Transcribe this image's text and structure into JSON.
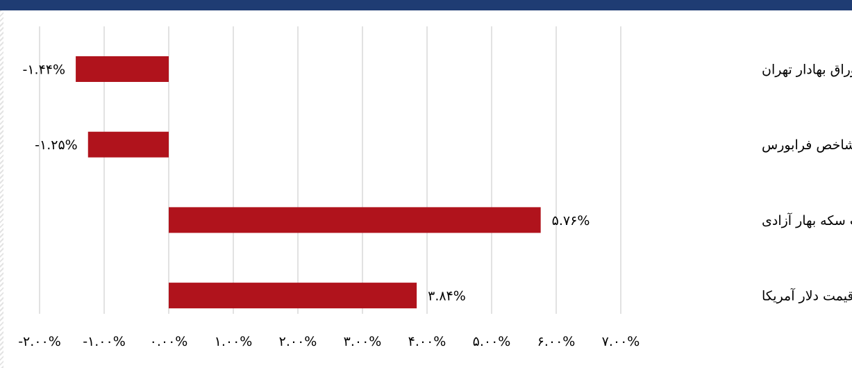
{
  "chart_data": {
    "type": "bar",
    "orientation": "horizontal",
    "categories": [
      "شاخص بورس اوراق بهادار تهران",
      "شاخص فرابورس",
      "قیمت سکه بهار آزادی",
      "قیمت دلار آمریکا"
    ],
    "values": [
      -1.44,
      -1.25,
      5.76,
      3.84
    ],
    "data_labels": [
      "-۱.۴۴%",
      "-۱.۲۵%",
      "۵.۷۶%",
      "۳.۸۴%"
    ],
    "xlim": [
      -2,
      7
    ],
    "xticks": [
      -2,
      -1,
      0,
      1,
      2,
      3,
      4,
      5,
      6,
      7
    ],
    "xtick_labels": [
      "-۲.۰۰%",
      "-۱.۰۰%",
      "۰.۰۰%",
      "۱.۰۰%",
      "۲.۰۰%",
      "۳.۰۰%",
      "۴.۰۰%",
      "۵.۰۰%",
      "۶.۰۰%",
      "۷.۰۰%"
    ],
    "grid": "vertical",
    "bar_color": "#b0131c",
    "grid_color": "#d9d9d9"
  },
  "colors": {
    "header": "#1f3c73"
  }
}
